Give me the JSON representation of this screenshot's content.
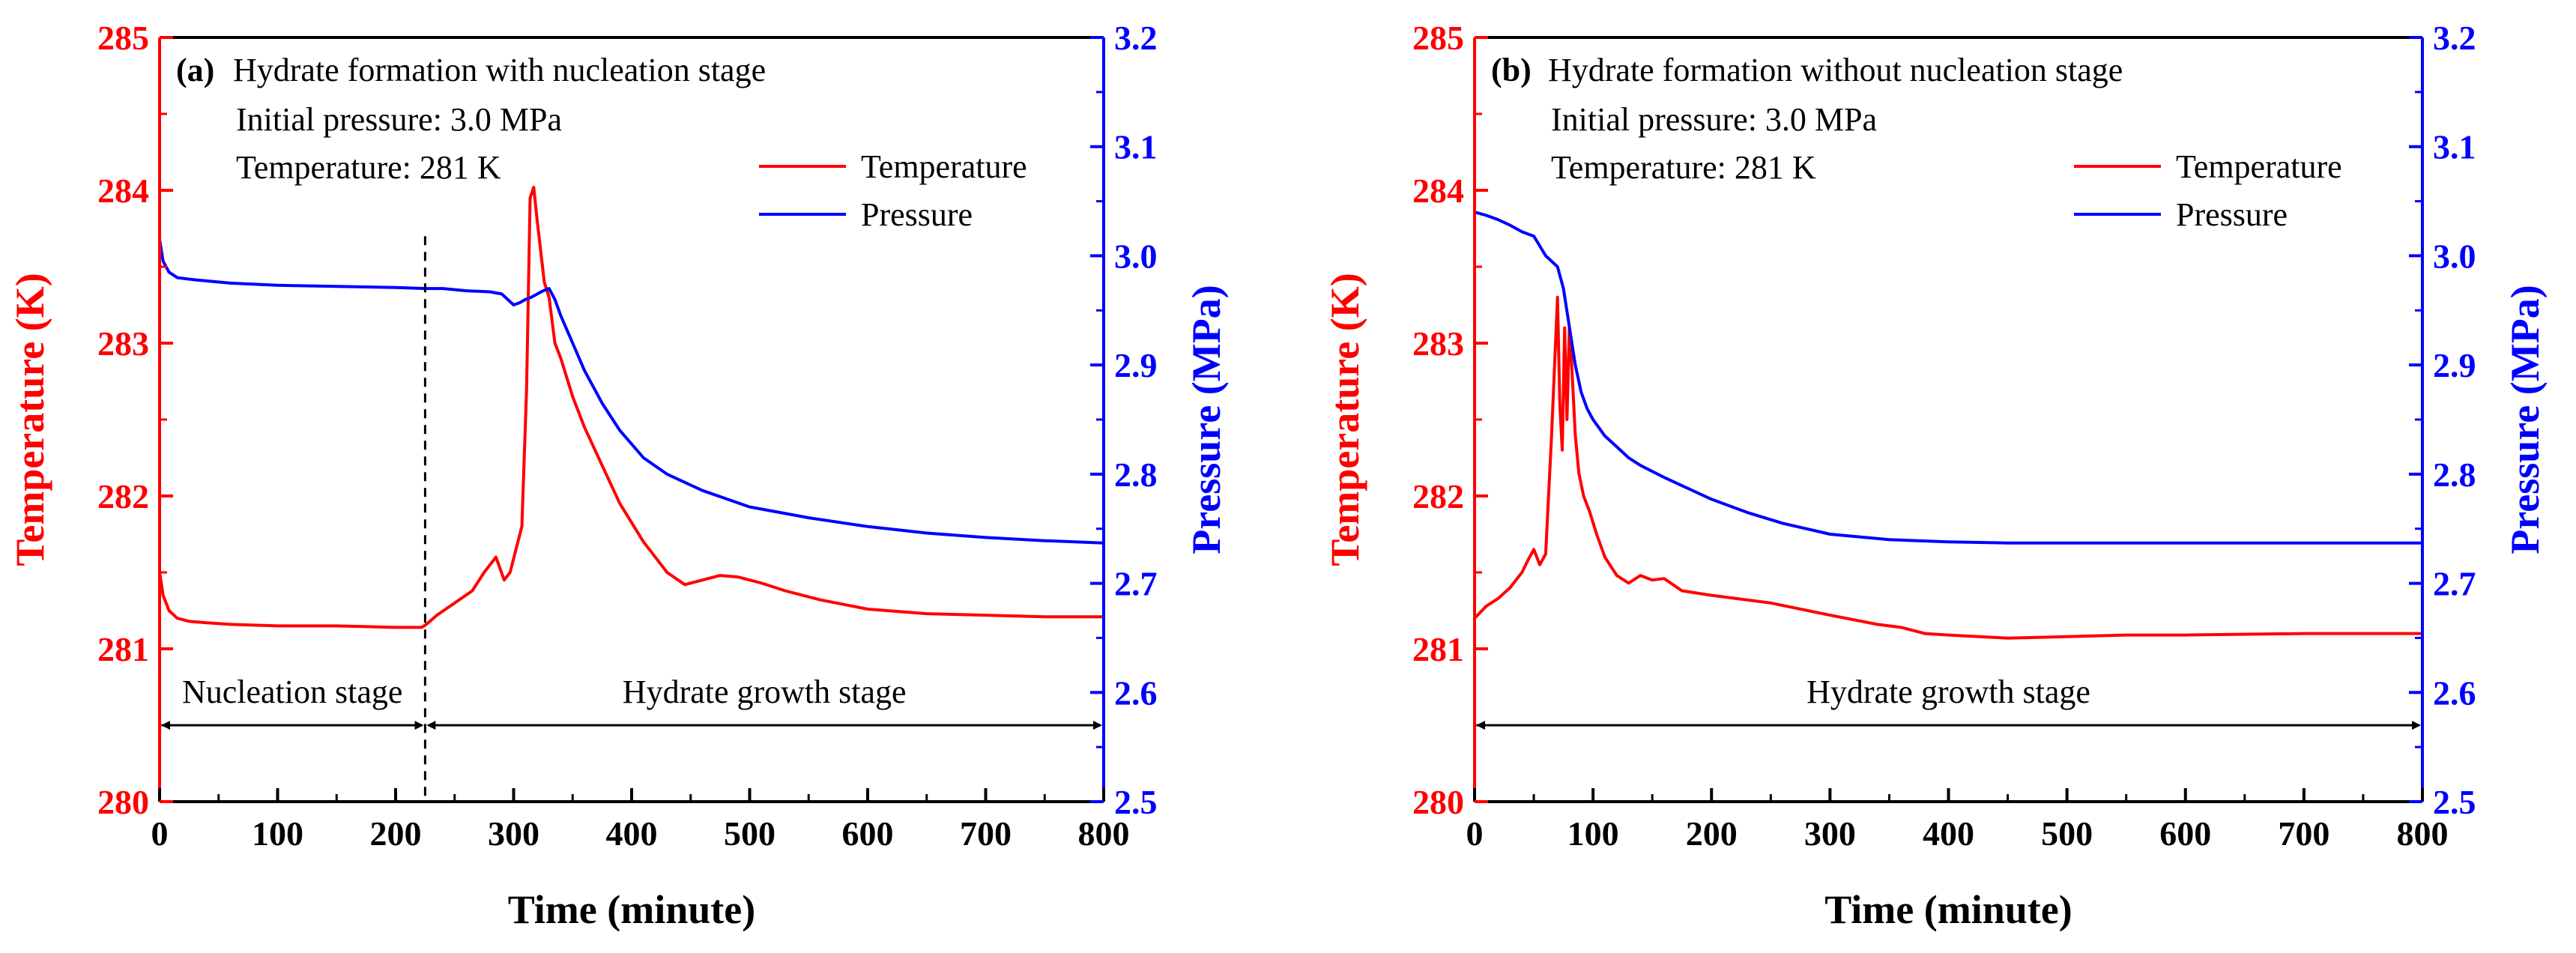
{
  "chart_data": [
    {
      "type": "line",
      "panel": "a",
      "panel_label": "(a)",
      "title": "Hydrate formation with nucleation stage",
      "conditions": [
        "Initial pressure: 3.0 MPa",
        "Temperature: 281 K"
      ],
      "xlabel": "Time (minute)",
      "ylabel_left": "Temperature (K)",
      "ylabel_right": "Pressure (MPa)",
      "xlim": [
        0,
        800
      ],
      "ylim_left": [
        280,
        285
      ],
      "ylim_right": [
        2.5,
        3.2
      ],
      "x_ticks": [
        "0",
        "100",
        "200",
        "300",
        "400",
        "500",
        "600",
        "700",
        "800"
      ],
      "y_left_ticks": [
        "280",
        "281",
        "282",
        "283",
        "284",
        "285"
      ],
      "y_right_ticks": [
        "2.5",
        "2.6",
        "2.7",
        "2.8",
        "2.9",
        "3.0",
        "3.1",
        "3.2"
      ],
      "legend": [
        "Temperature",
        "Pressure"
      ],
      "series": [
        {
          "name": "Temperature",
          "axis": "left",
          "color": "#ff0000",
          "x": [
            0,
            3,
            8,
            15,
            25,
            40,
            60,
            100,
            150,
            200,
            222,
            226,
            235,
            250,
            265,
            275,
            285,
            292,
            297,
            302,
            307,
            311,
            314,
            317,
            320,
            323,
            326,
            330,
            335,
            340,
            350,
            360,
            375,
            390,
            410,
            430,
            445,
            460,
            475,
            490,
            510,
            530,
            560,
            600,
            650,
            700,
            750,
            800
          ],
          "y": [
            281.5,
            281.35,
            281.25,
            281.2,
            281.18,
            281.17,
            281.16,
            281.15,
            281.15,
            281.14,
            281.14,
            281.16,
            281.22,
            281.3,
            281.38,
            281.5,
            281.6,
            281.45,
            281.5,
            281.65,
            281.8,
            282.7,
            283.95,
            284.02,
            283.8,
            283.6,
            283.4,
            283.3,
            283.0,
            282.9,
            282.65,
            282.45,
            282.2,
            281.95,
            281.7,
            281.5,
            281.42,
            281.45,
            281.48,
            281.47,
            281.43,
            281.38,
            281.32,
            281.26,
            281.23,
            281.22,
            281.21,
            281.21
          ]
        },
        {
          "name": "Pressure",
          "axis": "right",
          "color": "#0000ff",
          "x": [
            0,
            3,
            8,
            15,
            30,
            60,
            100,
            150,
            200,
            225,
            240,
            260,
            280,
            290,
            295,
            300,
            305,
            310,
            315,
            320,
            325,
            330,
            335,
            340,
            350,
            360,
            375,
            390,
            410,
            430,
            460,
            500,
            550,
            600,
            650,
            700,
            750,
            800
          ],
          "y": [
            3.015,
            2.995,
            2.985,
            2.98,
            2.978,
            2.975,
            2.973,
            2.972,
            2.971,
            2.97,
            2.97,
            2.968,
            2.967,
            2.965,
            2.96,
            2.955,
            2.957,
            2.96,
            2.962,
            2.965,
            2.968,
            2.97,
            2.96,
            2.945,
            2.92,
            2.895,
            2.865,
            2.84,
            2.815,
            2.8,
            2.785,
            2.77,
            2.76,
            2.752,
            2.746,
            2.742,
            2.739,
            2.737
          ]
        }
      ],
      "stage_divider_x": 225,
      "stages": [
        {
          "label": "Nucleation stage",
          "from": 0,
          "to": 225
        },
        {
          "label": "Hydrate growth stage",
          "from": 225,
          "to": 800
        }
      ],
      "stage_arrow_level": 280.5
    },
    {
      "type": "line",
      "panel": "b",
      "panel_label": "(b)",
      "title": "Hydrate formation without nucleation stage",
      "conditions": [
        "Initial pressure: 3.0 MPa",
        "Temperature: 281 K"
      ],
      "xlabel": "Time (minute)",
      "ylabel_left": "Temperature (K)",
      "ylabel_right": "Pressure (MPa)",
      "xlim": [
        0,
        800
      ],
      "ylim_left": [
        280,
        285
      ],
      "ylim_right": [
        2.5,
        3.2
      ],
      "x_ticks": [
        "0",
        "100",
        "200",
        "300",
        "400",
        "500",
        "600",
        "700",
        "800"
      ],
      "y_left_ticks": [
        "280",
        "281",
        "282",
        "283",
        "284",
        "285"
      ],
      "y_right_ticks": [
        "2.5",
        "2.6",
        "2.7",
        "2.8",
        "2.9",
        "3.0",
        "3.1",
        "3.2"
      ],
      "legend": [
        "Temperature",
        "Pressure"
      ],
      "series": [
        {
          "name": "Temperature",
          "axis": "left",
          "color": "#ff0000",
          "x": [
            0,
            10,
            20,
            30,
            40,
            45,
            50,
            55,
            60,
            65,
            70,
            72,
            74,
            76,
            78,
            80,
            82,
            85,
            88,
            92,
            97,
            103,
            110,
            120,
            130,
            140,
            150,
            160,
            175,
            200,
            250,
            300,
            340,
            360,
            380,
            400,
            450,
            500,
            550,
            600,
            700,
            800
          ],
          "y": [
            281.2,
            281.28,
            281.33,
            281.4,
            281.5,
            281.58,
            281.65,
            281.55,
            281.62,
            282.4,
            283.3,
            282.6,
            282.3,
            283.1,
            282.5,
            283.1,
            282.85,
            282.4,
            282.15,
            282.0,
            281.9,
            281.75,
            281.6,
            281.48,
            281.43,
            281.48,
            281.45,
            281.46,
            281.38,
            281.35,
            281.3,
            281.22,
            281.16,
            281.14,
            281.1,
            281.09,
            281.07,
            281.08,
            281.09,
            281.09,
            281.1,
            281.1
          ]
        },
        {
          "name": "Pressure",
          "axis": "right",
          "color": "#0000ff",
          "x": [
            0,
            10,
            20,
            30,
            40,
            50,
            60,
            70,
            75,
            80,
            85,
            90,
            95,
            100,
            110,
            120,
            130,
            140,
            160,
            180,
            200,
            230,
            260,
            300,
            350,
            400,
            450,
            500,
            600,
            700,
            800
          ],
          "y": [
            3.04,
            3.037,
            3.033,
            3.028,
            3.022,
            3.018,
            3.0,
            2.99,
            2.97,
            2.935,
            2.9,
            2.875,
            2.86,
            2.85,
            2.835,
            2.825,
            2.815,
            2.808,
            2.797,
            2.787,
            2.777,
            2.765,
            2.755,
            2.745,
            2.74,
            2.738,
            2.737,
            2.737,
            2.737,
            2.737,
            2.737
          ]
        }
      ],
      "stages": [
        {
          "label": "Hydrate growth stage",
          "from": 0,
          "to": 800
        }
      ],
      "stage_arrow_level": 280.5
    }
  ]
}
